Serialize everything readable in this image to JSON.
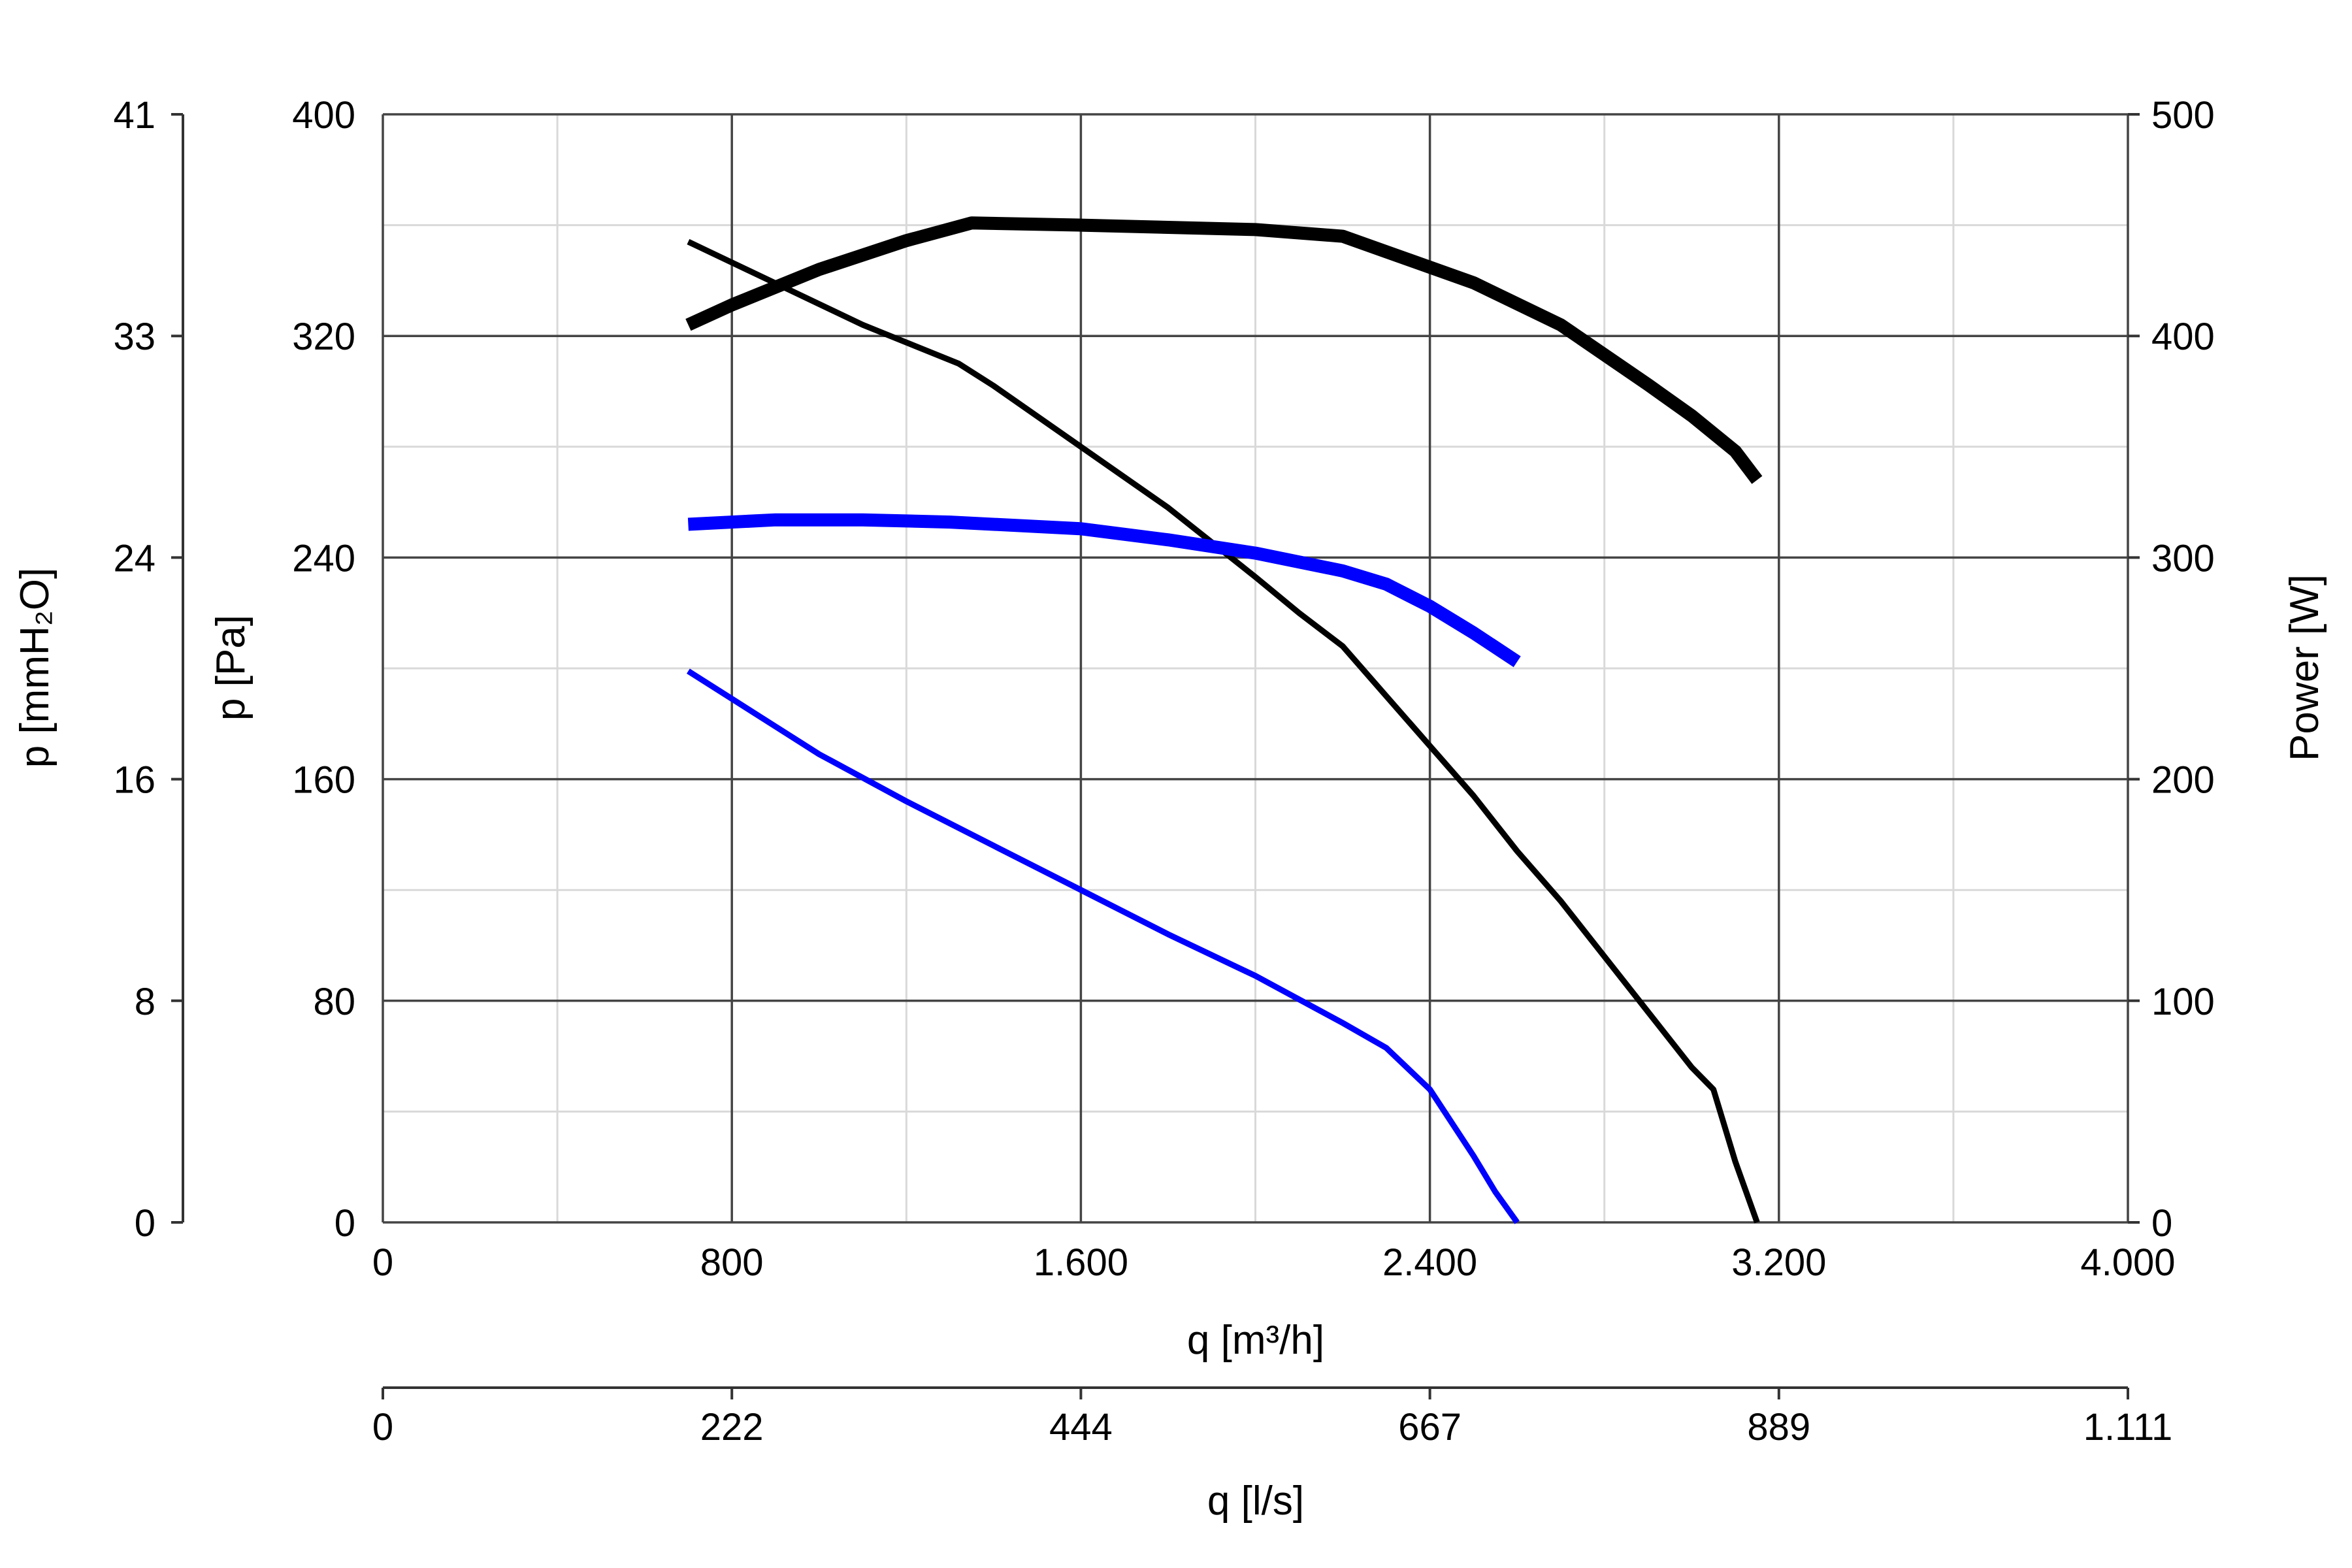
{
  "chart_data": {
    "type": "line",
    "x_axis": {
      "label": "q [m³/h]",
      "range": [
        0,
        4000
      ],
      "ticks": [
        0,
        800,
        1600,
        2400,
        3200,
        4000
      ],
      "tick_labels": [
        "0",
        "800",
        "1.600",
        "2.400",
        "3.200",
        "4.000"
      ]
    },
    "x2_axis": {
      "label": "q [l/s]",
      "ticks": [
        0,
        800,
        1600,
        2400,
        3200,
        4000
      ],
      "tick_labels": [
        "0",
        "222",
        "444",
        "667",
        "889",
        "1.111"
      ]
    },
    "y_axis": {
      "label": "p [Pa]",
      "range": [
        0,
        400
      ],
      "ticks": [
        0,
        80,
        160,
        240,
        320,
        400
      ],
      "tick_labels": [
        "0",
        "80",
        "160",
        "240",
        "320",
        "400"
      ]
    },
    "y_mmh2o_axis": {
      "label": "p [mmH₂O]",
      "ticks": [
        0,
        80,
        160,
        240,
        320,
        400
      ],
      "tick_labels": [
        "0",
        "8",
        "16",
        "24",
        "33",
        "41"
      ]
    },
    "y_power_axis": {
      "label": "Power [W]",
      "range": [
        0,
        500
      ],
      "ticks": [
        0,
        100,
        200,
        300,
        400,
        500
      ],
      "tick_labels": [
        "0",
        "100",
        "200",
        "300",
        "400",
        "500"
      ]
    },
    "grid": true,
    "series": [
      {
        "color": "#000000",
        "axis": "pressure",
        "style": "thin",
        "points": [
          [
            700,
            354
          ],
          [
            900,
            339
          ],
          [
            1100,
            324
          ],
          [
            1320,
            310
          ],
          [
            1400,
            302
          ],
          [
            1600,
            280
          ],
          [
            1800,
            258
          ],
          [
            2000,
            233
          ],
          [
            2100,
            220
          ],
          [
            2200,
            208
          ],
          [
            2300,
            190
          ],
          [
            2400,
            172
          ],
          [
            2500,
            154
          ],
          [
            2600,
            134
          ],
          [
            2700,
            116
          ],
          [
            2800,
            96
          ],
          [
            2900,
            76
          ],
          [
            3000,
            56
          ],
          [
            3050,
            48
          ],
          [
            3100,
            22
          ],
          [
            3150,
            0
          ]
        ]
      },
      {
        "color": "#000000",
        "axis": "power",
        "style": "thick",
        "points": [
          [
            700,
            405
          ],
          [
            800,
            414
          ],
          [
            1000,
            430
          ],
          [
            1200,
            443
          ],
          [
            1350,
            451
          ],
          [
            1600,
            450
          ],
          [
            1800,
            449
          ],
          [
            2000,
            448
          ],
          [
            2200,
            445
          ],
          [
            2300,
            438
          ],
          [
            2500,
            424
          ],
          [
            2700,
            405
          ],
          [
            2900,
            378
          ],
          [
            3000,
            364
          ],
          [
            3100,
            348
          ],
          [
            3150,
            335
          ]
        ]
      },
      {
        "color": "#0000ff",
        "axis": "pressure",
        "style": "thin",
        "points": [
          [
            700,
            199
          ],
          [
            800,
            189
          ],
          [
            900,
            179
          ],
          [
            1000,
            169
          ],
          [
            1200,
            152
          ],
          [
            1400,
            136
          ],
          [
            1600,
            120
          ],
          [
            1800,
            104
          ],
          [
            2000,
            89
          ],
          [
            2200,
            72
          ],
          [
            2300,
            63
          ],
          [
            2400,
            48
          ],
          [
            2500,
            24
          ],
          [
            2550,
            11
          ],
          [
            2600,
            0
          ]
        ]
      },
      {
        "color": "#0000ff",
        "axis": "power",
        "style": "thick",
        "points": [
          [
            700,
            315
          ],
          [
            900,
            317
          ],
          [
            1100,
            317
          ],
          [
            1300,
            316
          ],
          [
            1600,
            313
          ],
          [
            1800,
            308
          ],
          [
            2000,
            302
          ],
          [
            2200,
            294
          ],
          [
            2300,
            288
          ],
          [
            2400,
            278
          ],
          [
            2500,
            266
          ],
          [
            2600,
            253
          ]
        ]
      }
    ]
  }
}
